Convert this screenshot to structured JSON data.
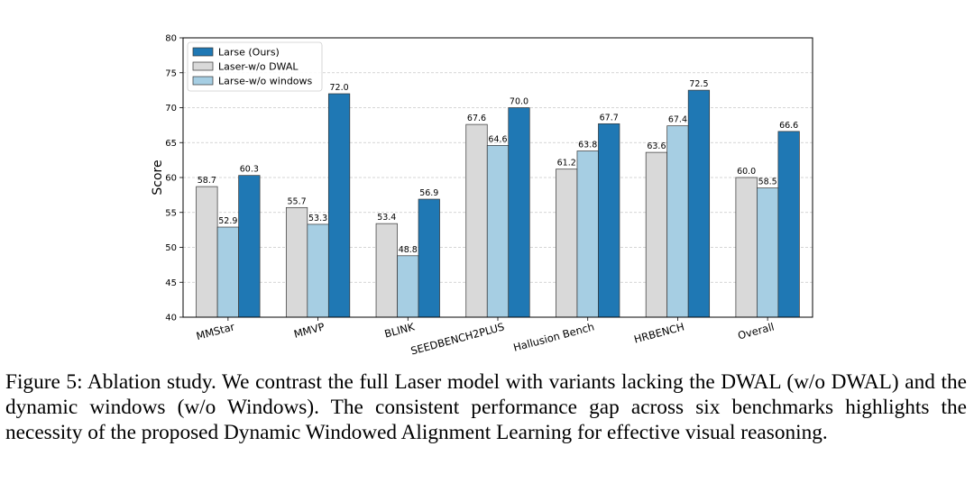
{
  "caption": {
    "label": "Figure 5:",
    "text": "Ablation study. We contrast the full Laser model with variants lacking the DWAL (w/o DWAL) and the dynamic windows (w/o Windows). The consistent performance gap across six benchmarks highlights the necessity of the proposed Dynamic Windowed Alignment Learning for effective visual reasoning."
  },
  "chart_data": {
    "type": "bar",
    "title": "",
    "xlabel": "",
    "ylabel": "Score",
    "ylim": [
      40,
      80
    ],
    "yticks": [
      40,
      45,
      50,
      55,
      60,
      65,
      70,
      75,
      80
    ],
    "grid": "horizontal dashed",
    "legend_position": "top-left",
    "categories": [
      "MMStar",
      "MMVP",
      "BLINK",
      "SEEDBENCH2PLUS",
      "Hallusion Bench",
      "HRBENCH",
      "Overall"
    ],
    "series": [
      {
        "name": "Laser-w/o DWAL",
        "color": "#d9d9d9",
        "values": [
          58.7,
          55.7,
          53.4,
          67.6,
          61.2,
          63.6,
          60.0
        ],
        "labels": [
          "58.7",
          "55.7",
          "53.4",
          "67.6",
          "61.2",
          "63.6",
          "60.0"
        ]
      },
      {
        "name": "Larse-w/o windows",
        "color": "#a6cee3",
        "values": [
          52.9,
          53.3,
          48.8,
          64.6,
          63.8,
          67.4,
          58.5
        ],
        "labels": [
          "52.9",
          "53.3",
          "48.8",
          "64.6",
          "63.8",
          "67.4",
          "58.5"
        ]
      },
      {
        "name": "Larse (Ours)",
        "color": "#1f78b4",
        "values": [
          60.3,
          72.0,
          56.9,
          70.0,
          67.7,
          72.5,
          66.6
        ],
        "labels": [
          "60.3",
          "72.0",
          "56.9",
          "70.0",
          "67.7",
          "72.5",
          "66.6"
        ]
      }
    ],
    "legend_order": [
      2,
      0,
      1
    ]
  }
}
